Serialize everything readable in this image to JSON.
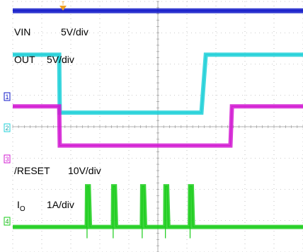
{
  "chart_data": {
    "type": "line",
    "title": "",
    "xlabel": "",
    "ylabel": "",
    "grid": true,
    "grid_divisions": {
      "x": 10,
      "y": 8
    },
    "trigger_marker": "T",
    "colors": {
      "background": "#ffffff",
      "grid": "#9a9a9a",
      "ch1": "#0f17c8",
      "ch2": "#1fd0d8",
      "ch3": "#d21ad2",
      "ch4": "#18cc18",
      "trigger": "#f0a020"
    },
    "channel_markers": [
      "1",
      "2",
      "3",
      "4"
    ],
    "annotations": [
      {
        "name": "VIN",
        "scale": "5V/div"
      },
      {
        "name": "OUT",
        "scale": "5V/div"
      },
      {
        "name": "/RESET",
        "scale": "10V/div"
      },
      {
        "name": "I",
        "sub": "O",
        "scale": "1A/div"
      }
    ],
    "series": [
      {
        "name": "VIN",
        "channel": 1,
        "x": [
          0,
          10
        ],
        "y": [
          7.7,
          7.7
        ]
      },
      {
        "name": "OUT",
        "channel": 2,
        "x": [
          0,
          1.6,
          1.62,
          6.5,
          6.65,
          10
        ],
        "y": [
          6.3,
          6.3,
          4.45,
          4.45,
          6.3,
          6.3
        ]
      },
      {
        "name": "/RESET",
        "channel": 3,
        "x": [
          0,
          1.6,
          1.62,
          7.5,
          7.55,
          10
        ],
        "y": [
          4.65,
          4.65,
          3.4,
          3.4,
          4.65,
          4.65
        ]
      },
      {
        "name": "IO",
        "channel": 4,
        "x": [
          0,
          2.55,
          2.56,
          2.62,
          2.66,
          3.45,
          3.46,
          3.52,
          3.56,
          4.45,
          4.46,
          4.52,
          4.56,
          5.25,
          5.26,
          5.32,
          5.36,
          6.1,
          6.11,
          6.17,
          6.21,
          10
        ],
        "y": [
          0.8,
          0.8,
          2.1,
          2.1,
          0.8,
          0.8,
          2.1,
          2.1,
          0.8,
          0.8,
          2.1,
          2.1,
          0.8,
          0.8,
          2.1,
          2.1,
          0.8,
          0.8,
          2.1,
          2.1,
          0.8,
          0.8
        ]
      }
    ]
  }
}
